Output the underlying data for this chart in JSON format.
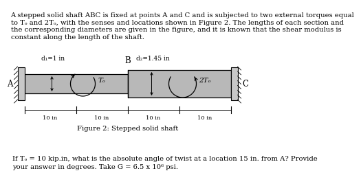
{
  "title_lines": [
    "A stepped solid shaft ABC is fixed at points A and C and is subjected to two external torques equal",
    "to Tₒ and 2Tₒ, with the senses and locations shown in Figure 2. The lengths of each section and",
    "the corresponding diameters are given in the figure, and it is known that the shear modulus is",
    "constant along the length of the shaft."
  ],
  "fig_caption": "Figure 2: Stepped solid shaft",
  "question_line1": "If Tₒ = 10 kip.in, what is the absolute angle of twist at a location 15 in. from A? Provide",
  "question_line2": "your answer in degrees. Take G = 6.5 x 10⁶ psi.",
  "shaft_color": "#b8b8b8",
  "shaft_edge_color": "#000000",
  "wall_color": "#c0c0c0",
  "background_color": "#ffffff",
  "label_A": "A",
  "label_B": "B",
  "label_C": "C",
  "label_d1": "d₁=1 in",
  "label_d2": "d₂=1.45 in",
  "label_To": "Tₒ",
  "label_2To": "2Tₒ",
  "dim_labels": [
    "10 in",
    "10 in",
    "10 in",
    "10 in"
  ],
  "fontsize_body": 7.2,
  "fontsize_fig": 7.2,
  "fontsize_question": 7.2,
  "fontsize_labels": 7.5
}
